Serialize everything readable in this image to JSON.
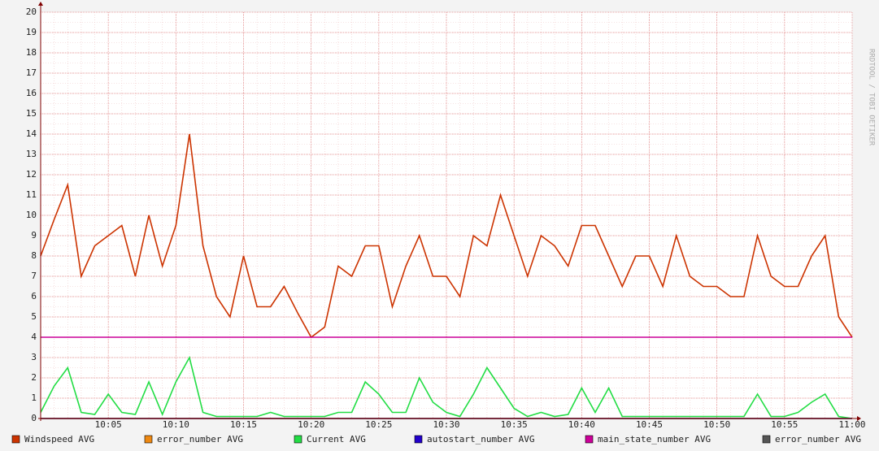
{
  "chart_data": {
    "type": "line",
    "watermark": "RRDTOOL / TOBI OETIKER",
    "x": [
      "10:00",
      "10:01",
      "10:02",
      "10:03",
      "10:04",
      "10:05",
      "10:06",
      "10:07",
      "10:08",
      "10:09",
      "10:10",
      "10:11",
      "10:12",
      "10:13",
      "10:14",
      "10:15",
      "10:16",
      "10:17",
      "10:18",
      "10:19",
      "10:20",
      "10:21",
      "10:22",
      "10:23",
      "10:24",
      "10:25",
      "10:26",
      "10:27",
      "10:28",
      "10:29",
      "10:30",
      "10:31",
      "10:32",
      "10:33",
      "10:34",
      "10:35",
      "10:36",
      "10:37",
      "10:38",
      "10:39",
      "10:40",
      "10:41",
      "10:42",
      "10:43",
      "10:44",
      "10:45",
      "10:46",
      "10:47",
      "10:48",
      "10:49",
      "10:50",
      "10:51",
      "10:52",
      "10:53",
      "10:54",
      "10:55",
      "10:56",
      "10:57",
      "10:58",
      "10:59",
      "11:00"
    ],
    "xlim": [
      "10:00",
      "11:00"
    ],
    "xticks": [
      "10:05",
      "10:10",
      "10:15",
      "10:20",
      "10:25",
      "10:30",
      "10:35",
      "10:40",
      "10:45",
      "10:50",
      "10:55",
      "11:00"
    ],
    "ylim": [
      0,
      20
    ],
    "yticks": [
      0,
      1,
      2,
      3,
      4,
      5,
      6,
      7,
      8,
      9,
      10,
      11,
      12,
      13,
      14,
      15,
      16,
      17,
      18,
      19,
      20
    ],
    "grid": true,
    "series": [
      {
        "name": "Windspeed AVG",
        "color": "#cc3300",
        "values": [
          8,
          9.8,
          11.5,
          7,
          8.5,
          9,
          9.5,
          7,
          10,
          7.5,
          9.5,
          14,
          8.5,
          6,
          5,
          8,
          5.5,
          5.5,
          6.5,
          5.2,
          4,
          4.5,
          7.5,
          7,
          8.5,
          8.5,
          5.5,
          7.5,
          9,
          7,
          7,
          6,
          9,
          8.5,
          11,
          9,
          7,
          9,
          8.5,
          7.5,
          9.5,
          9.5,
          8,
          6.5,
          8,
          8,
          6.5,
          9,
          7,
          6.5,
          6.5,
          6,
          6,
          9,
          7,
          6.5,
          6.5,
          8,
          9,
          5,
          4
        ]
      },
      {
        "name": "error_number AVG",
        "color": "#ee8811",
        "values": [
          0,
          0,
          0,
          0,
          0,
          0,
          0,
          0,
          0,
          0,
          0,
          0,
          0,
          0,
          0,
          0,
          0,
          0,
          0,
          0,
          0,
          0,
          0,
          0,
          0,
          0,
          0,
          0,
          0,
          0,
          0,
          0,
          0,
          0,
          0,
          0,
          0,
          0,
          0,
          0,
          0,
          0,
          0,
          0,
          0,
          0,
          0,
          0,
          0,
          0,
          0,
          0,
          0,
          0,
          0,
          0,
          0,
          0,
          0,
          0,
          0
        ]
      },
      {
        "name": "Current AVG",
        "color": "#22dd44",
        "values": [
          0.3,
          1.6,
          2.5,
          0.3,
          0.2,
          1.2,
          0.3,
          0.2,
          1.8,
          0.2,
          1.8,
          3,
          0.3,
          0.1,
          0.1,
          0.1,
          0.1,
          0.3,
          0.1,
          0.1,
          0.1,
          0.1,
          0.3,
          0.3,
          1.8,
          1.2,
          0.3,
          0.3,
          2,
          0.8,
          0.3,
          0.1,
          1.2,
          2.5,
          1.5,
          0.5,
          0.1,
          0.3,
          0.1,
          0.2,
          1.5,
          0.3,
          1.5,
          0.1,
          0.1,
          0.1,
          0.1,
          0.1,
          0.1,
          0.1,
          0.1,
          0.1,
          0.1,
          1.2,
          0.1,
          0.1,
          0.3,
          0.8,
          1.2,
          0.1,
          0
        ]
      },
      {
        "name": "autostart_number AVG",
        "color": "#2200cc",
        "values": [
          0,
          0,
          0,
          0,
          0,
          0,
          0,
          0,
          0,
          0,
          0,
          0,
          0,
          0,
          0,
          0,
          0,
          0,
          0,
          0,
          0,
          0,
          0,
          0,
          0,
          0,
          0,
          0,
          0,
          0,
          0,
          0,
          0,
          0,
          0,
          0,
          0,
          0,
          0,
          0,
          0,
          0,
          0,
          0,
          0,
          0,
          0,
          0,
          0,
          0,
          0,
          0,
          0,
          0,
          0,
          0,
          0,
          0,
          0,
          0,
          0
        ]
      },
      {
        "name": "main_state_number AVG",
        "color": "#cc0099",
        "values": [
          4,
          4,
          4,
          4,
          4,
          4,
          4,
          4,
          4,
          4,
          4,
          4,
          4,
          4,
          4,
          4,
          4,
          4,
          4,
          4,
          4,
          4,
          4,
          4,
          4,
          4,
          4,
          4,
          4,
          4,
          4,
          4,
          4,
          4,
          4,
          4,
          4,
          4,
          4,
          4,
          4,
          4,
          4,
          4,
          4,
          4,
          4,
          4,
          4,
          4,
          4,
          4,
          4,
          4,
          4,
          4,
          4,
          4,
          4,
          4,
          4
        ]
      },
      {
        "name": "error_number AVG",
        "color": "#555555",
        "values": [
          0,
          0,
          0,
          0,
          0,
          0,
          0,
          0,
          0,
          0,
          0,
          0,
          0,
          0,
          0,
          0,
          0,
          0,
          0,
          0,
          0,
          0,
          0,
          0,
          0,
          0,
          0,
          0,
          0,
          0,
          0,
          0,
          0,
          0,
          0,
          0,
          0,
          0,
          0,
          0,
          0,
          0,
          0,
          0,
          0,
          0,
          0,
          0,
          0,
          0,
          0,
          0,
          0,
          0,
          0,
          0,
          0,
          0,
          0,
          0,
          0
        ]
      }
    ]
  }
}
